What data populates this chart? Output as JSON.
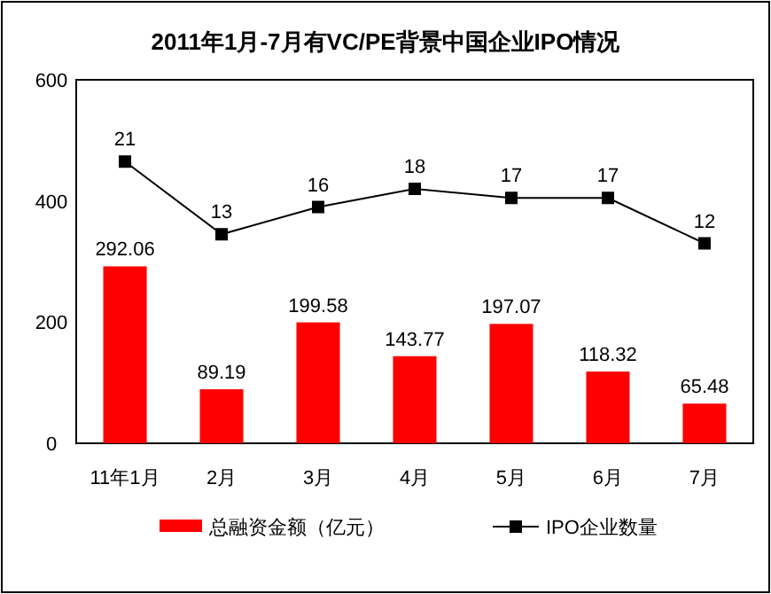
{
  "chart_data": {
    "type": "bar",
    "title": "2011年1月-7月有VC/PE背景中国企业IPO情况",
    "categories": [
      "11年1月",
      "2月",
      "3月",
      "4月",
      "5月",
      "6月",
      "7月"
    ],
    "series": [
      {
        "name": "总融资金额（亿元）",
        "color": "#ff0000",
        "values": [
          292.06,
          89.19,
          199.58,
          143.77,
          197.07,
          118.32,
          65.48
        ]
      },
      {
        "name": "IPO企业数量",
        "type": "line",
        "axis": "y2",
        "color": "#000000",
        "marker": "square",
        "values": [
          21,
          13,
          16,
          18,
          17,
          17,
          12
        ]
      }
    ],
    "ylim": [
      0,
      600
    ],
    "yticks": [
      0,
      200,
      400,
      600
    ],
    "y2lim": [
      -10,
      30
    ],
    "tick_labels": "xy",
    "data_labels": true,
    "legend": "bottom",
    "grid": false
  }
}
